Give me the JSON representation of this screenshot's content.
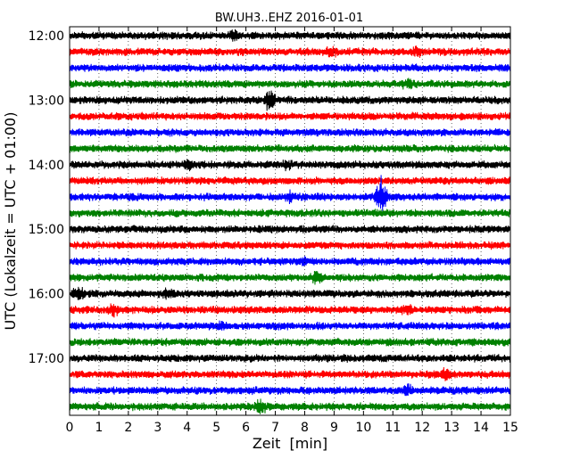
{
  "chart_data": {
    "type": "line",
    "title": "BW.UH3..EHZ 2016-01-01",
    "xlabel": "Zeit  [min]",
    "ylabel": "UTC (Lokalzeit = UTC + 01:00)",
    "xlim": [
      0,
      15
    ],
    "x_ticks": [
      "0",
      "1",
      "2",
      "3",
      "4",
      "5",
      "6",
      "7",
      "8",
      "9",
      "10",
      "11",
      "12",
      "13",
      "14",
      "15"
    ],
    "y_ticks": [
      "12:00",
      "13:00",
      "14:00",
      "15:00",
      "16:00",
      "17:00"
    ],
    "grid": true,
    "series": [
      {
        "start": "12:00",
        "color": "#000000"
      },
      {
        "start": "12:15",
        "color": "#ff0000"
      },
      {
        "start": "12:30",
        "color": "#0000ff"
      },
      {
        "start": "12:45",
        "color": "#008000"
      },
      {
        "start": "13:00",
        "color": "#000000"
      },
      {
        "start": "13:15",
        "color": "#ff0000"
      },
      {
        "start": "13:30",
        "color": "#0000ff"
      },
      {
        "start": "13:45",
        "color": "#008000"
      },
      {
        "start": "14:00",
        "color": "#000000"
      },
      {
        "start": "14:15",
        "color": "#ff0000"
      },
      {
        "start": "14:30",
        "color": "#0000ff"
      },
      {
        "start": "14:45",
        "color": "#008000"
      },
      {
        "start": "15:00",
        "color": "#000000"
      },
      {
        "start": "15:15",
        "color": "#ff0000"
      },
      {
        "start": "15:30",
        "color": "#0000ff"
      },
      {
        "start": "15:45",
        "color": "#008000"
      },
      {
        "start": "16:00",
        "color": "#000000"
      },
      {
        "start": "16:15",
        "color": "#ff0000"
      },
      {
        "start": "16:30",
        "color": "#0000ff"
      },
      {
        "start": "16:45",
        "color": "#008000"
      },
      {
        "start": "17:00",
        "color": "#000000"
      },
      {
        "start": "17:15",
        "color": "#ff0000"
      },
      {
        "start": "17:30",
        "color": "#0000ff"
      },
      {
        "start": "17:45",
        "color": "#008000"
      }
    ],
    "events": [
      {
        "trace": "12:00",
        "minute": 5.6,
        "amp": 1.6
      },
      {
        "trace": "12:15",
        "minute": 8.9,
        "amp": 1.5
      },
      {
        "trace": "12:15",
        "minute": 11.8,
        "amp": 1.4
      },
      {
        "trace": "12:45",
        "minute": 11.5,
        "amp": 1.4
      },
      {
        "trace": "13:00",
        "minute": 6.8,
        "amp": 2.4
      },
      {
        "trace": "14:00",
        "minute": 4.1,
        "amp": 1.4
      },
      {
        "trace": "14:00",
        "minute": 7.4,
        "amp": 1.4
      },
      {
        "trace": "14:30",
        "minute": 7.5,
        "amp": 1.5
      },
      {
        "trace": "14:30",
        "minute": 10.6,
        "amp": 3.0
      },
      {
        "trace": "15:30",
        "minute": 8.0,
        "amp": 1.3
      },
      {
        "trace": "15:45",
        "minute": 8.4,
        "amp": 1.8
      },
      {
        "trace": "16:00",
        "minute": 0.3,
        "amp": 1.6
      },
      {
        "trace": "16:00",
        "minute": 3.4,
        "amp": 1.5
      },
      {
        "trace": "16:15",
        "minute": 1.5,
        "amp": 1.5
      },
      {
        "trace": "16:15",
        "minute": 11.5,
        "amp": 1.4
      },
      {
        "trace": "16:30",
        "minute": 5.2,
        "amp": 1.3
      },
      {
        "trace": "17:15",
        "minute": 12.8,
        "amp": 1.7
      },
      {
        "trace": "17:30",
        "minute": 11.5,
        "amp": 1.5
      },
      {
        "trace": "17:45",
        "minute": 6.5,
        "amp": 1.8
      }
    ]
  }
}
